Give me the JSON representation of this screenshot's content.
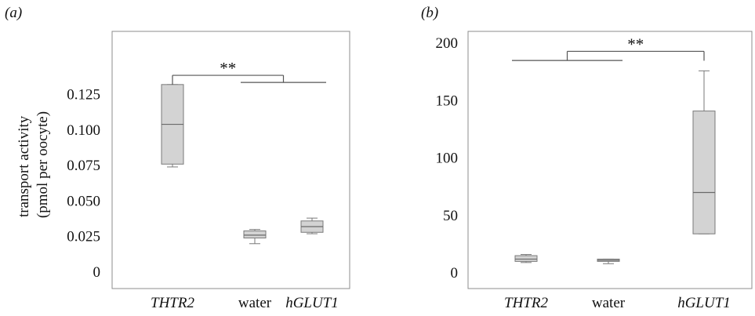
{
  "chart_data": [
    {
      "type": "box",
      "panel_label": "(a)",
      "ylabel": "transport activity (pmol per oocyte)",
      "categories": [
        {
          "label": "THTR2",
          "italic": true
        },
        {
          "label": "water",
          "italic": false
        },
        {
          "label": "hGLUT1",
          "italic": true
        }
      ],
      "yticks": [
        "0",
        "0.025",
        "0.050",
        "0.075",
        "0.100",
        "0.125"
      ],
      "ylim": [
        0,
        0.14
      ],
      "boxes": [
        {
          "min": 0.074,
          "q1": 0.076,
          "median": 0.104,
          "q3": 0.132,
          "max": 0.132
        },
        {
          "min": 0.02,
          "q1": 0.024,
          "median": 0.026,
          "q3": 0.029,
          "max": 0.03
        },
        {
          "min": 0.027,
          "q1": 0.028,
          "median": 0.032,
          "q3": 0.036,
          "max": 0.038
        }
      ],
      "significance": {
        "label": "**",
        "single": 0,
        "group": [
          1,
          2
        ],
        "height": 0.1385,
        "group_line": 0.1335
      },
      "box_color": "#d3d3d3",
      "line_color": "#7a7a7a"
    },
    {
      "type": "box",
      "panel_label": "(b)",
      "ylabel": "",
      "categories": [
        {
          "label": "THTR2",
          "italic": true
        },
        {
          "label": "water",
          "italic": false
        },
        {
          "label": "hGLUT1",
          "italic": true
        }
      ],
      "yticks": [
        "0",
        "50",
        "100",
        "150",
        "200"
      ],
      "ylim": [
        -5,
        210
      ],
      "boxes": [
        {
          "min": 9,
          "q1": 10,
          "median": 12,
          "q3": 15,
          "max": 16
        },
        {
          "min": 8,
          "q1": 10,
          "median": 11,
          "q3": 12,
          "max": 12
        },
        {
          "min": 34,
          "q1": 34,
          "median": 70,
          "q3": 141,
          "max": 176
        }
      ],
      "significance": {
        "label": "**",
        "single": 2,
        "group": [
          0,
          1
        ],
        "height": 193,
        "group_line": 185
      },
      "box_color": "#d3d3d3",
      "line_color": "#7a7a7a"
    }
  ]
}
